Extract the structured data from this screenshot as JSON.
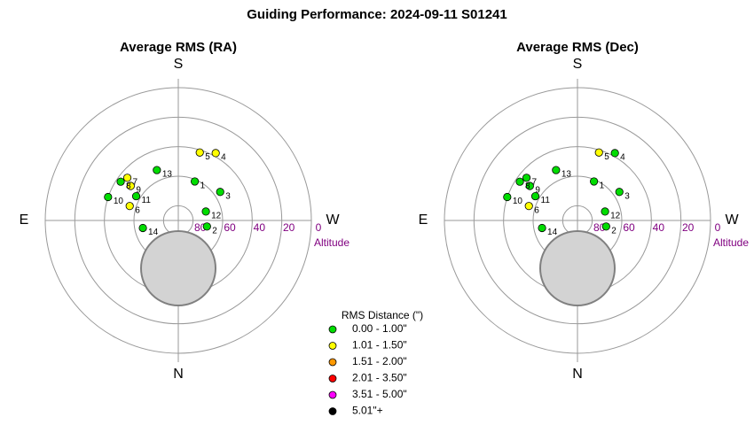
{
  "title": "Guiding Performance: 2024-09-11 S01241",
  "colors": {
    "ring": "#999999",
    "axis": "#999999",
    "altitude_label": "#800080",
    "obstruction_fill": "#d3d3d3",
    "obstruction_stroke": "#808080"
  },
  "legend": {
    "title": "RMS Distance (\")",
    "items": [
      {
        "label": "0.00 - 1.00\"",
        "color": "#00dd00"
      },
      {
        "label": "1.01 - 1.50\"",
        "color": "#ffff00"
      },
      {
        "label": "1.51 - 2.00\"",
        "color": "#ff9900"
      },
      {
        "label": "2.01 - 3.50\"",
        "color": "#ff0000"
      },
      {
        "label": "3.51 - 5.00\"",
        "color": "#ff00ff"
      },
      {
        "label": "5.01\"+",
        "color": "#000000"
      }
    ]
  },
  "chart_data": [
    {
      "type": "scatter",
      "projection": "polar",
      "title": "Average RMS (RA)",
      "directions": {
        "top": "S",
        "bottom": "N",
        "left": "E",
        "right": "W"
      },
      "altitude_ticks": [
        "80",
        "60",
        "40",
        "20",
        "0"
      ],
      "altitude_axis_label": "Altitude",
      "points": [
        {
          "label": "1",
          "az": 22.9,
          "alt": 61.3,
          "color": "#00dd00"
        },
        {
          "label": "3",
          "az": 55.7,
          "alt": 55.7,
          "color": "#00dd00"
        },
        {
          "label": "12",
          "az": 72.0,
          "alt": 70.4,
          "color": "#00dd00"
        },
        {
          "label": "2",
          "az": 101.9,
          "alt": 70.2,
          "color": "#00dd00"
        },
        {
          "label": "5",
          "az": 17.5,
          "alt": 41.7,
          "color": "#ffff00"
        },
        {
          "label": "4",
          "az": 29.0,
          "alt": 37.8,
          "color": "#ffff00"
        },
        {
          "label": "13",
          "az": 337.0,
          "alt": 52.9,
          "color": "#00dd00"
        },
        {
          "label": "9",
          "az": 306.0,
          "alt": 50.2,
          "color": "#ffff00"
        },
        {
          "label": "7",
          "az": 310.0,
          "alt": 45.0,
          "color": "#ffff00"
        },
        {
          "label": "8",
          "az": 304.0,
          "alt": 43.0,
          "color": "#00dd00"
        },
        {
          "label": "10",
          "az": 288.5,
          "alt": 39.9,
          "color": "#00dd00"
        },
        {
          "label": "11",
          "az": 300.0,
          "alt": 57.1,
          "color": "#00dd00"
        },
        {
          "label": "6",
          "az": 286.6,
          "alt": 55.7,
          "color": "#ffff00"
        },
        {
          "label": "14",
          "az": 258.0,
          "alt": 65.5,
          "color": "#00dd00"
        }
      ]
    },
    {
      "type": "scatter",
      "projection": "polar",
      "title": "Average RMS (Dec)",
      "directions": {
        "top": "S",
        "bottom": "N",
        "left": "E",
        "right": "W"
      },
      "altitude_ticks": [
        "80",
        "60",
        "40",
        "20",
        "0"
      ],
      "altitude_axis_label": "Altitude",
      "points": [
        {
          "label": "1",
          "az": 22.9,
          "alt": 61.3,
          "color": "#00dd00"
        },
        {
          "label": "3",
          "az": 55.7,
          "alt": 55.7,
          "color": "#00dd00"
        },
        {
          "label": "12",
          "az": 72.0,
          "alt": 70.4,
          "color": "#00dd00"
        },
        {
          "label": "2",
          "az": 101.9,
          "alt": 70.2,
          "color": "#00dd00"
        },
        {
          "label": "5",
          "az": 17.5,
          "alt": 41.7,
          "color": "#ffff00"
        },
        {
          "label": "4",
          "az": 29.0,
          "alt": 37.8,
          "color": "#00dd00"
        },
        {
          "label": "13",
          "az": 337.0,
          "alt": 52.9,
          "color": "#00dd00"
        },
        {
          "label": "9",
          "az": 306.0,
          "alt": 50.2,
          "color": "#00dd00"
        },
        {
          "label": "7",
          "az": 310.0,
          "alt": 45.0,
          "color": "#00dd00"
        },
        {
          "label": "8",
          "az": 304.0,
          "alt": 43.0,
          "color": "#00dd00"
        },
        {
          "label": "10",
          "az": 288.5,
          "alt": 39.9,
          "color": "#00dd00"
        },
        {
          "label": "11",
          "az": 300.0,
          "alt": 57.1,
          "color": "#00dd00"
        },
        {
          "label": "6",
          "az": 286.6,
          "alt": 55.7,
          "color": "#ffff00"
        },
        {
          "label": "14",
          "az": 258.0,
          "alt": 65.5,
          "color": "#00dd00"
        }
      ]
    }
  ]
}
